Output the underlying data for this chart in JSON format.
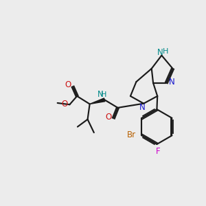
{
  "bg_color": "#ececec",
  "bond_color": "#1a1a1a",
  "N_color": "#1414cc",
  "O_color": "#cc1414",
  "Br_color": "#b86000",
  "F_color": "#cc00cc",
  "NH_color": "#008888",
  "figsize": [
    3.0,
    3.0
  ],
  "dpi": 100
}
